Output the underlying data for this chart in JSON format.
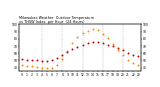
{
  "title": "Milwaukee Weather  Outdoor Temperature\nvs THSW Index  per Hour  (24 Hours)",
  "hours": [
    0,
    1,
    2,
    3,
    4,
    5,
    6,
    7,
    8,
    9,
    10,
    11,
    12,
    13,
    14,
    15,
    16,
    17,
    18,
    19,
    20,
    21,
    22,
    23
  ],
  "temp": [
    52,
    51,
    51,
    50,
    49,
    49,
    50,
    53,
    57,
    62,
    66,
    69,
    72,
    74,
    75,
    75,
    74,
    72,
    70,
    67,
    64,
    61,
    58,
    56
  ],
  "thsw": [
    44,
    43,
    42,
    41,
    40,
    39,
    40,
    44,
    52,
    63,
    74,
    82,
    88,
    91,
    93,
    92,
    87,
    81,
    73,
    65,
    57,
    51,
    47,
    44
  ],
  "temp_color": "#cc0000",
  "thsw_color": "#ff8800",
  "background_color": "#ffffff",
  "vgrid_color": "#999999",
  "ylim": [
    35,
    100
  ],
  "xlim": [
    -0.5,
    23.5
  ],
  "vgrid_hours": [
    4,
    8,
    12,
    16,
    20
  ],
  "yticks": [
    40,
    50,
    60,
    70,
    80,
    90,
    100
  ],
  "marker_size": 2.0,
  "tick_fontsize": 2.2,
  "title_fontsize": 2.5
}
